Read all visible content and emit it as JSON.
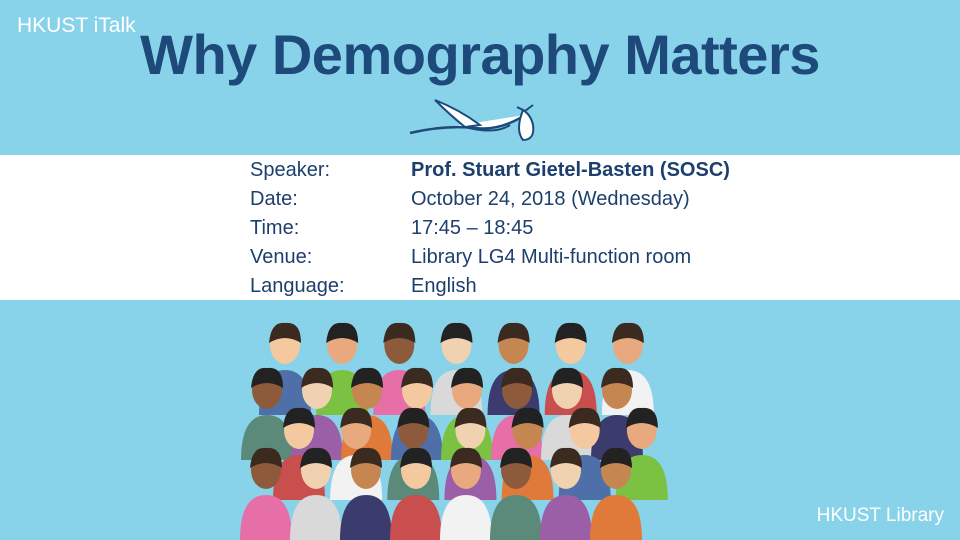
{
  "header": {
    "brand": "HKUST iTalk",
    "title": "Why Demography Matters"
  },
  "details": [
    {
      "label": "Speaker:",
      "value": "Prof. Stuart Gietel-Basten (SOSC)"
    },
    {
      "label": "Date:",
      "value": "October 24, 2018 (Wednesday)"
    },
    {
      "label": "Time:",
      "value": "17:45 – 18:45"
    },
    {
      "label": "Venue:",
      "value": "Library LG4 Multi-function room"
    },
    {
      "label": "Language:",
      "value": "English"
    }
  ],
  "footer": {
    "library": "HKUST Library"
  },
  "colors": {
    "background": "#89d3ea",
    "title": "#1d4a7a",
    "text": "#1d3f6e"
  },
  "icons": [
    "stork-carrying-bundle-icon",
    "crowd-of-people-illustration"
  ]
}
